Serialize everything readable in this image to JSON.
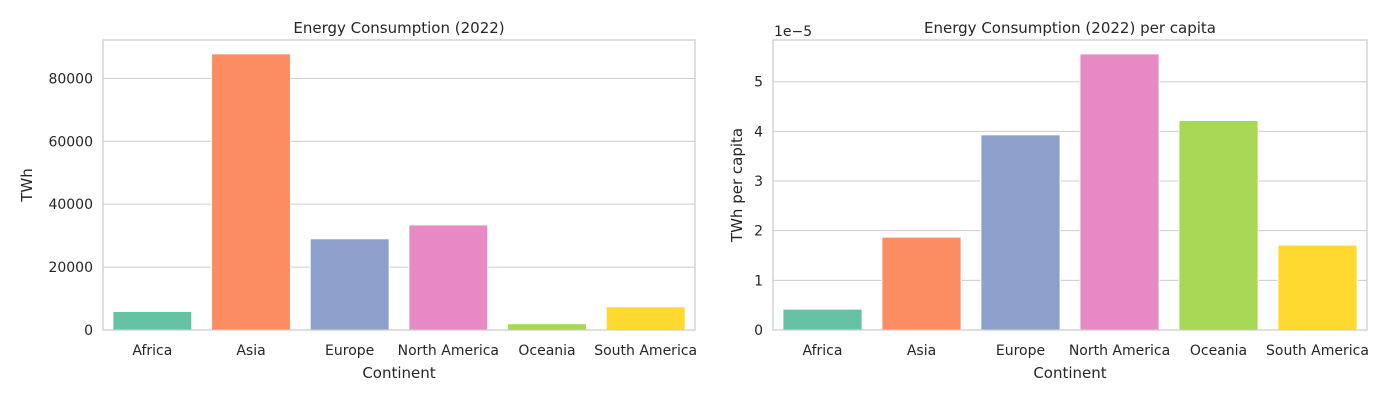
{
  "figure": {
    "palette": [
      "#66c2a5",
      "#fc8d62",
      "#8da0cb",
      "#e78ac3",
      "#a6d854",
      "#ffd92f"
    ],
    "frame_color": "#cccccc",
    "grid_color": "#cccccc"
  },
  "chart_data": [
    {
      "type": "bar",
      "title": "Energy Consumption (2022)",
      "xlabel": "Continent",
      "ylabel": "TWh",
      "categories": [
        "Africa",
        "Asia",
        "Europe",
        "North America",
        "Oceania",
        "South America"
      ],
      "values": [
        5900,
        87800,
        29000,
        33400,
        2000,
        7400
      ],
      "ylim": [
        0,
        92200
      ],
      "yticks": [
        0,
        20000,
        40000,
        60000,
        80000
      ],
      "ytick_labels": [
        "0",
        "20000",
        "40000",
        "60000",
        "80000"
      ],
      "offset_label": "",
      "grid": true
    },
    {
      "type": "bar",
      "title": "Energy Consumption (2022) per capita",
      "xlabel": "Continent",
      "ylabel": "TWh per capita",
      "categories": [
        "Africa",
        "Asia",
        "Europe",
        "North America",
        "Oceania",
        "South America"
      ],
      "values": [
        4.2e-06,
        1.87e-05,
        3.93e-05,
        5.56e-05,
        4.22e-05,
        1.71e-05
      ],
      "ylim": [
        0,
        5.84e-05
      ],
      "yticks": [
        0,
        1e-05,
        2e-05,
        3e-05,
        4e-05,
        5e-05
      ],
      "ytick_labels": [
        "0",
        "1",
        "2",
        "3",
        "4",
        "5"
      ],
      "offset_label": "1e−5",
      "grid": true
    }
  ]
}
